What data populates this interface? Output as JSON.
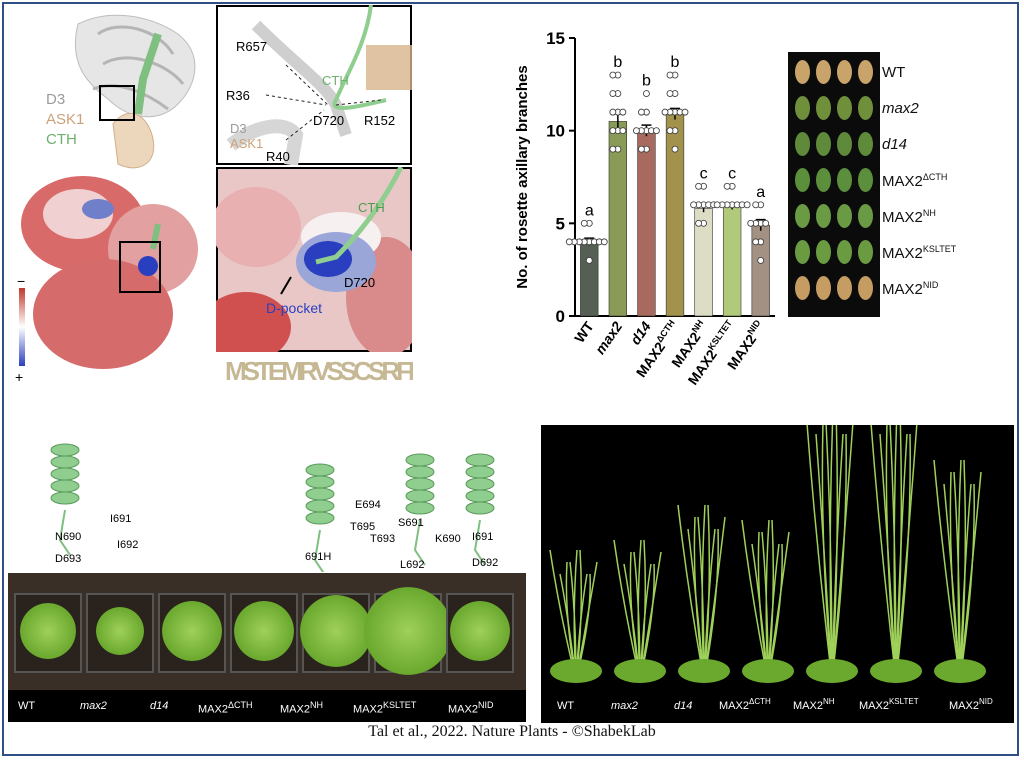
{
  "chart_data": {
    "type": "bar",
    "ylabel": "No. of rosette axillary branches",
    "ylim": [
      0,
      15
    ],
    "yticks": [
      0,
      5,
      10,
      15
    ],
    "categories": [
      "WT",
      "max2",
      "d14",
      "MAX2ΔCTH",
      "MAX2NH",
      "MAX2KSLTET",
      "MAX2NID"
    ],
    "category_labels": [
      {
        "main": "WT",
        "sup": "",
        "italic": false
      },
      {
        "main": "max2",
        "sup": "",
        "italic": true
      },
      {
        "main": "d14",
        "sup": "",
        "italic": true
      },
      {
        "main": "MAX2",
        "sup": "ΔCTH",
        "italic": false
      },
      {
        "main": "MAX2",
        "sup": "NH",
        "italic": false
      },
      {
        "main": "MAX2",
        "sup": "KSLTET",
        "italic": false
      },
      {
        "main": "MAX2",
        "sup": "NID",
        "italic": false
      }
    ],
    "values": [
      4.0,
      10.5,
      10.0,
      10.9,
      5.8,
      5.9,
      4.9
    ],
    "errors": [
      0.2,
      0.5,
      0.3,
      0.3,
      0.2,
      0.15,
      0.3
    ],
    "significance": [
      "a",
      "b",
      "b",
      "b",
      "c",
      "c",
      "a"
    ],
    "bar_colors": [
      "#555f54",
      "#8a9a57",
      "#a86a5e",
      "#a3924c",
      "#ddddc5",
      "#b1c97b",
      "#a39183"
    ],
    "points": [
      [
        4,
        4,
        4,
        4,
        4,
        4,
        5,
        5,
        3,
        4,
        4
      ],
      [
        9,
        9,
        10,
        10,
        11,
        11,
        12,
        12,
        13,
        13,
        11,
        10
      ],
      [
        9,
        9,
        10,
        10,
        10,
        10,
        11,
        11,
        12,
        10
      ],
      [
        9,
        10,
        10,
        11,
        11,
        11,
        12,
        12,
        13,
        13,
        11,
        11
      ],
      [
        5,
        5,
        6,
        6,
        6,
        6,
        7,
        7,
        6
      ],
      [
        6,
        6,
        6,
        6,
        6,
        6,
        7,
        7,
        6
      ],
      [
        3,
        4,
        4,
        5,
        5,
        5,
        6,
        6,
        5
      ]
    ]
  },
  "structure_labels": {
    "d3": "D3",
    "ask1": "ASK1",
    "cth": "CTH",
    "scale_minus": "−",
    "scale_plus": "+"
  },
  "zoom_labels": {
    "r657": "R657",
    "r36": "R36",
    "cth": "CTH",
    "d720": "D720",
    "r152": "R152",
    "d3": "D3",
    "ask1": "ASK1",
    "r40": "R40"
  },
  "surface_labels": {
    "cth": "CTH",
    "d720": "D720",
    "pocket": "D-pocket"
  },
  "logo_text": "MSTEMRVSSCSRFEDALNRRSLLD",
  "leaf_legend": [
    {
      "main": "WT",
      "sup": "",
      "italic": false
    },
    {
      "main": "max2",
      "sup": "",
      "italic": true
    },
    {
      "main": "d14",
      "sup": "",
      "italic": true
    },
    {
      "main": "MAX2",
      "sup": "ΔCTH",
      "italic": false
    },
    {
      "main": "MAX2",
      "sup": "NH",
      "italic": false
    },
    {
      "main": "MAX2",
      "sup": "KSLTET",
      "italic": false
    },
    {
      "main": "MAX2",
      "sup": "NID",
      "italic": false
    }
  ],
  "helix_labels": {
    "h1": [
      "N690",
      "I691",
      "I692",
      "D693"
    ],
    "h2": [
      "691H"
    ],
    "h3": [
      "E694",
      "S691",
      "K690",
      "T695",
      "T693",
      "L692"
    ],
    "h4": [
      "I691",
      "D692"
    ]
  },
  "rosette_labels": [
    {
      "main": "WT",
      "sup": "",
      "italic": false
    },
    {
      "main": "max2",
      "sup": "",
      "italic": true
    },
    {
      "main": "d14",
      "sup": "",
      "italic": true
    },
    {
      "main": "MAX2",
      "sup": "ΔCTH",
      "italic": false
    },
    {
      "main": "MAX2",
      "sup": "NH",
      "italic": false
    },
    {
      "main": "MAX2",
      "sup": "KSLTET",
      "italic": false
    },
    {
      "main": "MAX2",
      "sup": "NID",
      "italic": false
    }
  ],
  "shoot_labels": [
    {
      "main": "WT",
      "sup": "",
      "italic": false
    },
    {
      "main": "max2",
      "sup": "",
      "italic": true
    },
    {
      "main": "d14",
      "sup": "",
      "italic": true
    },
    {
      "main": "MAX2",
      "sup": "ΔCTH",
      "italic": false
    },
    {
      "main": "MAX2",
      "sup": "NH",
      "italic": false
    },
    {
      "main": "MAX2",
      "sup": "KSLTET",
      "italic": false
    },
    {
      "main": "MAX2",
      "sup": "NID",
      "italic": false
    }
  ],
  "credit": "Tal et al., 2022. Nature Plants  - ©ShabekLab",
  "colors": {
    "frame": "#2f4f86",
    "cth_green": "#7fbf7f",
    "ask1_tan": "#d8b48c",
    "d3_gray": "#a0a0a0",
    "surface_red": "#c84a4a",
    "surface_blue": "#2a3fbf"
  }
}
